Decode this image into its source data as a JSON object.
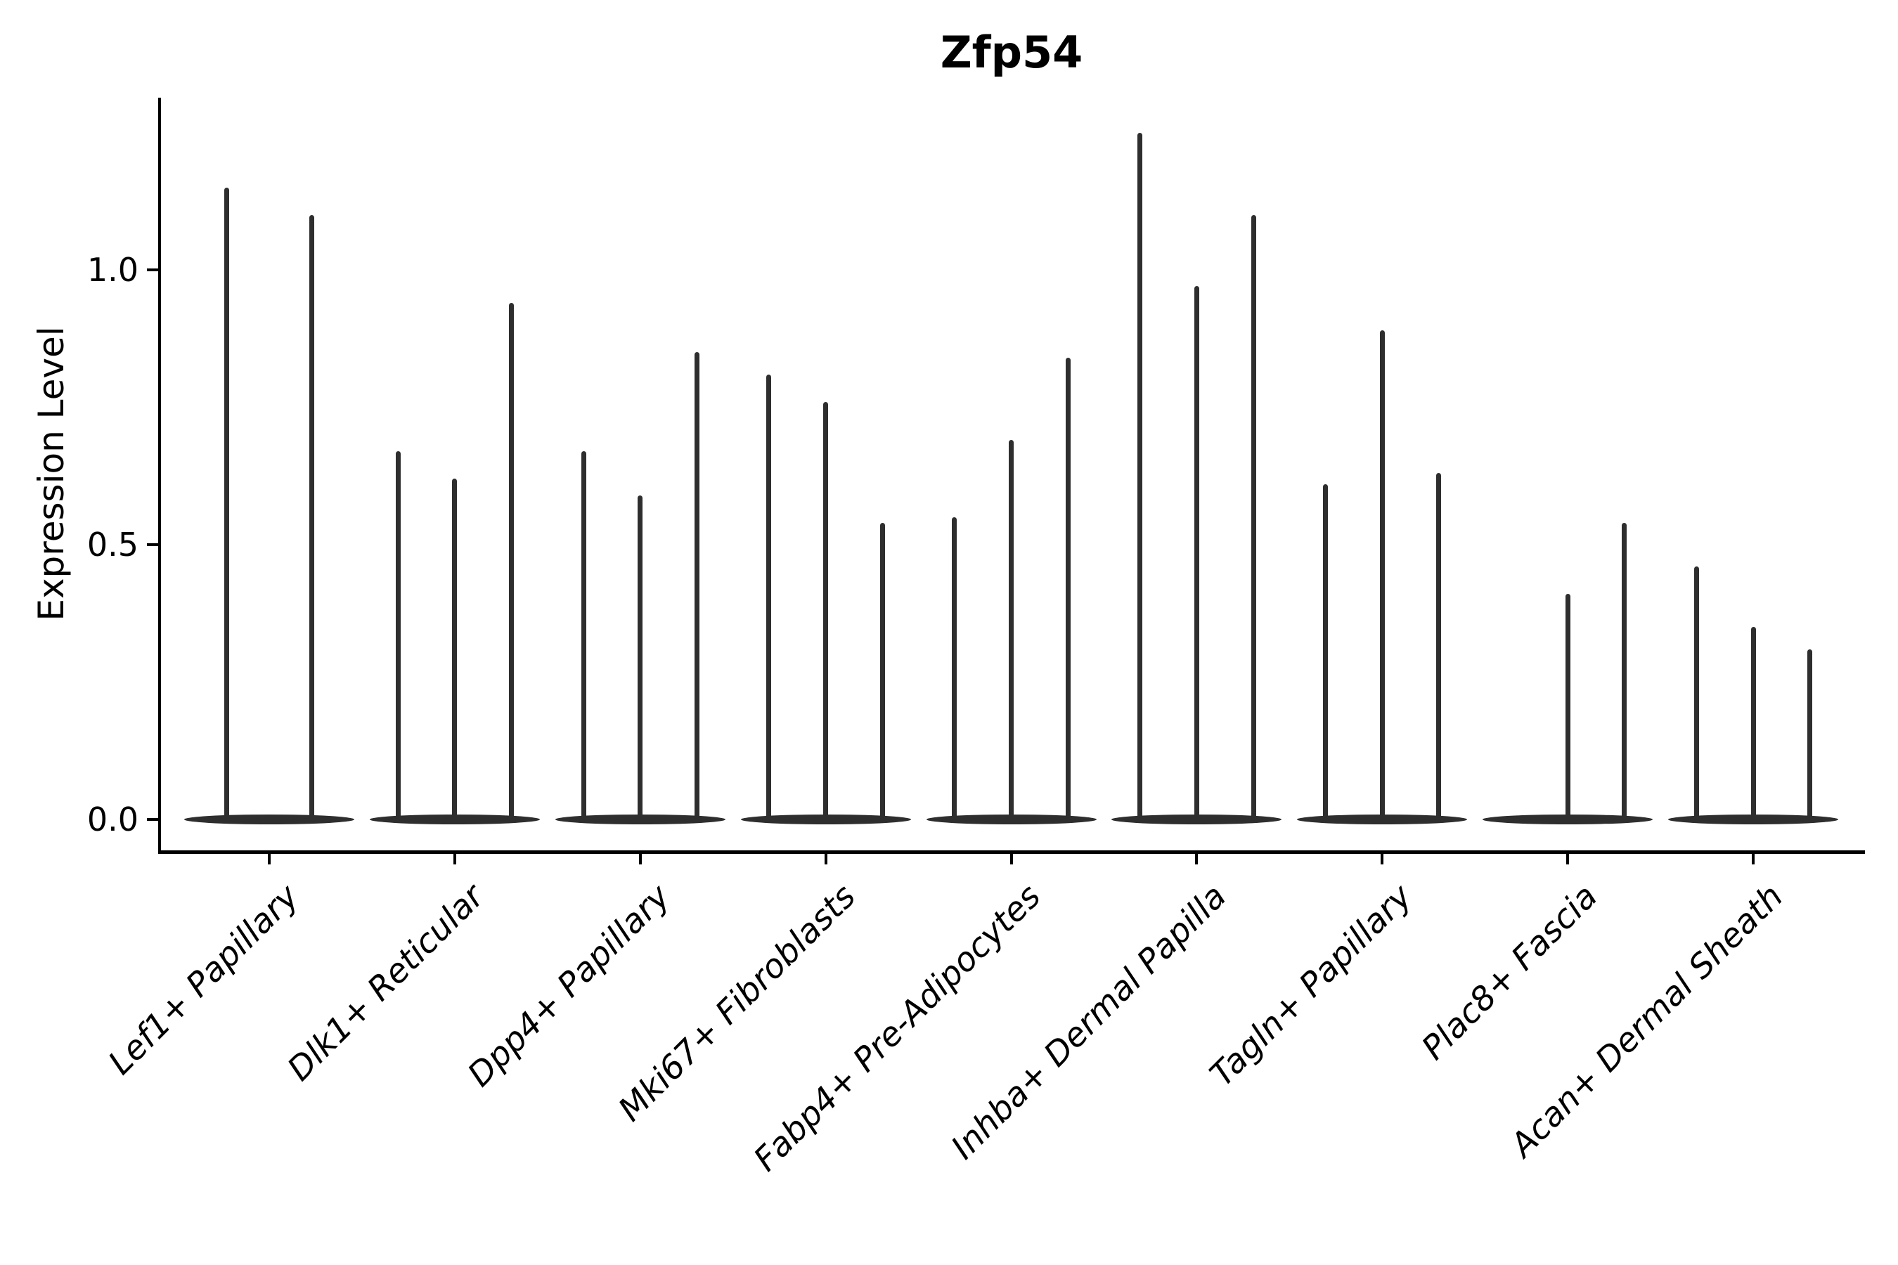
{
  "chart_data": {
    "type": "violin",
    "title": "Zfp54",
    "ylabel": "Expression Level",
    "xlabel": "",
    "yticks": [
      "0.0",
      "0.5",
      "1.0"
    ],
    "ytick_values": [
      0.0,
      0.5,
      1.0
    ],
    "ylim": [
      -0.06,
      1.31
    ],
    "grid": false,
    "legend": "none",
    "categories": [
      "Lef1+ Papillary",
      "Dlk1+ Reticular",
      "Dpp4+ Papillary",
      "Mki67+ Fibroblasts",
      "Fabp4+ Pre-Adipocytes",
      "Inhba+ Dermal Papilla",
      "Tagln+ Papillary",
      "Plac8+ Fascia",
      "Acan+ Dermal Sheath"
    ],
    "groups": [
      {
        "label": "Lef1+ Papillary",
        "violin_max": [
          1.15,
          1.1
        ]
      },
      {
        "label": "Dlk1+ Reticular",
        "violin_max": [
          0.67,
          0.62,
          0.94
        ]
      },
      {
        "label": "Dpp4+ Papillary",
        "violin_max": [
          0.67,
          0.59,
          0.85
        ]
      },
      {
        "label": "Mki67+ Fibroblasts",
        "violin_max": [
          0.81,
          0.76,
          0.54
        ]
      },
      {
        "label": "Fabp4+ Pre-Adipocytes",
        "violin_max": [
          0.55,
          0.69,
          0.84
        ]
      },
      {
        "label": "Inhba+ Dermal Papilla",
        "violin_max": [
          1.25,
          0.97,
          1.1
        ]
      },
      {
        "label": "Tagln+ Papillary",
        "violin_max": [
          0.61,
          0.89,
          0.63
        ]
      },
      {
        "label": "Plac8+ Fascia",
        "violin_max": [
          0.0,
          0.41,
          0.54
        ]
      },
      {
        "label": "Acan+ Dermal Sheath",
        "violin_max": [
          0.46,
          0.35,
          0.31
        ]
      }
    ],
    "violin_color": "#2e2e2e",
    "axis_color": "#000000"
  }
}
